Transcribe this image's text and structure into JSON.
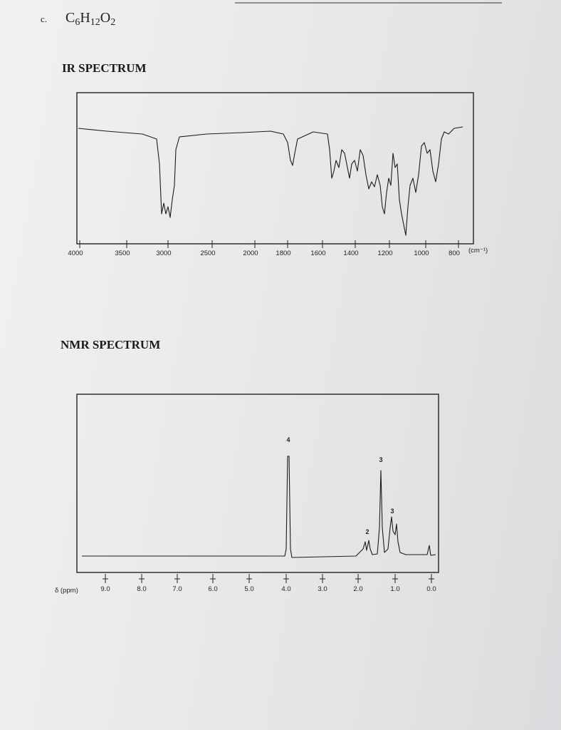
{
  "header": {
    "item": "c.",
    "formula": [
      "C",
      "6",
      "H",
      "12",
      "O",
      "2"
    ]
  },
  "ir": {
    "title": "IR SPECTRUM",
    "axis_labels": [
      "4000",
      "3500",
      "3000",
      "2500",
      "2000",
      "1800",
      "1600",
      "1400",
      "1200",
      "1000",
      "800"
    ],
    "unit": "(cm⁻¹)"
  },
  "nmr": {
    "title": "NMR SPECTRUM",
    "axis_title": "δ (ppm)",
    "axis_labels": [
      "9.0",
      "8.0",
      "7.0",
      "6.0",
      "5.0",
      "4.0",
      "3.0",
      "2.0",
      "1.0",
      "0.0"
    ],
    "peak_labels": [
      "4",
      "3",
      "3",
      "2"
    ]
  }
}
